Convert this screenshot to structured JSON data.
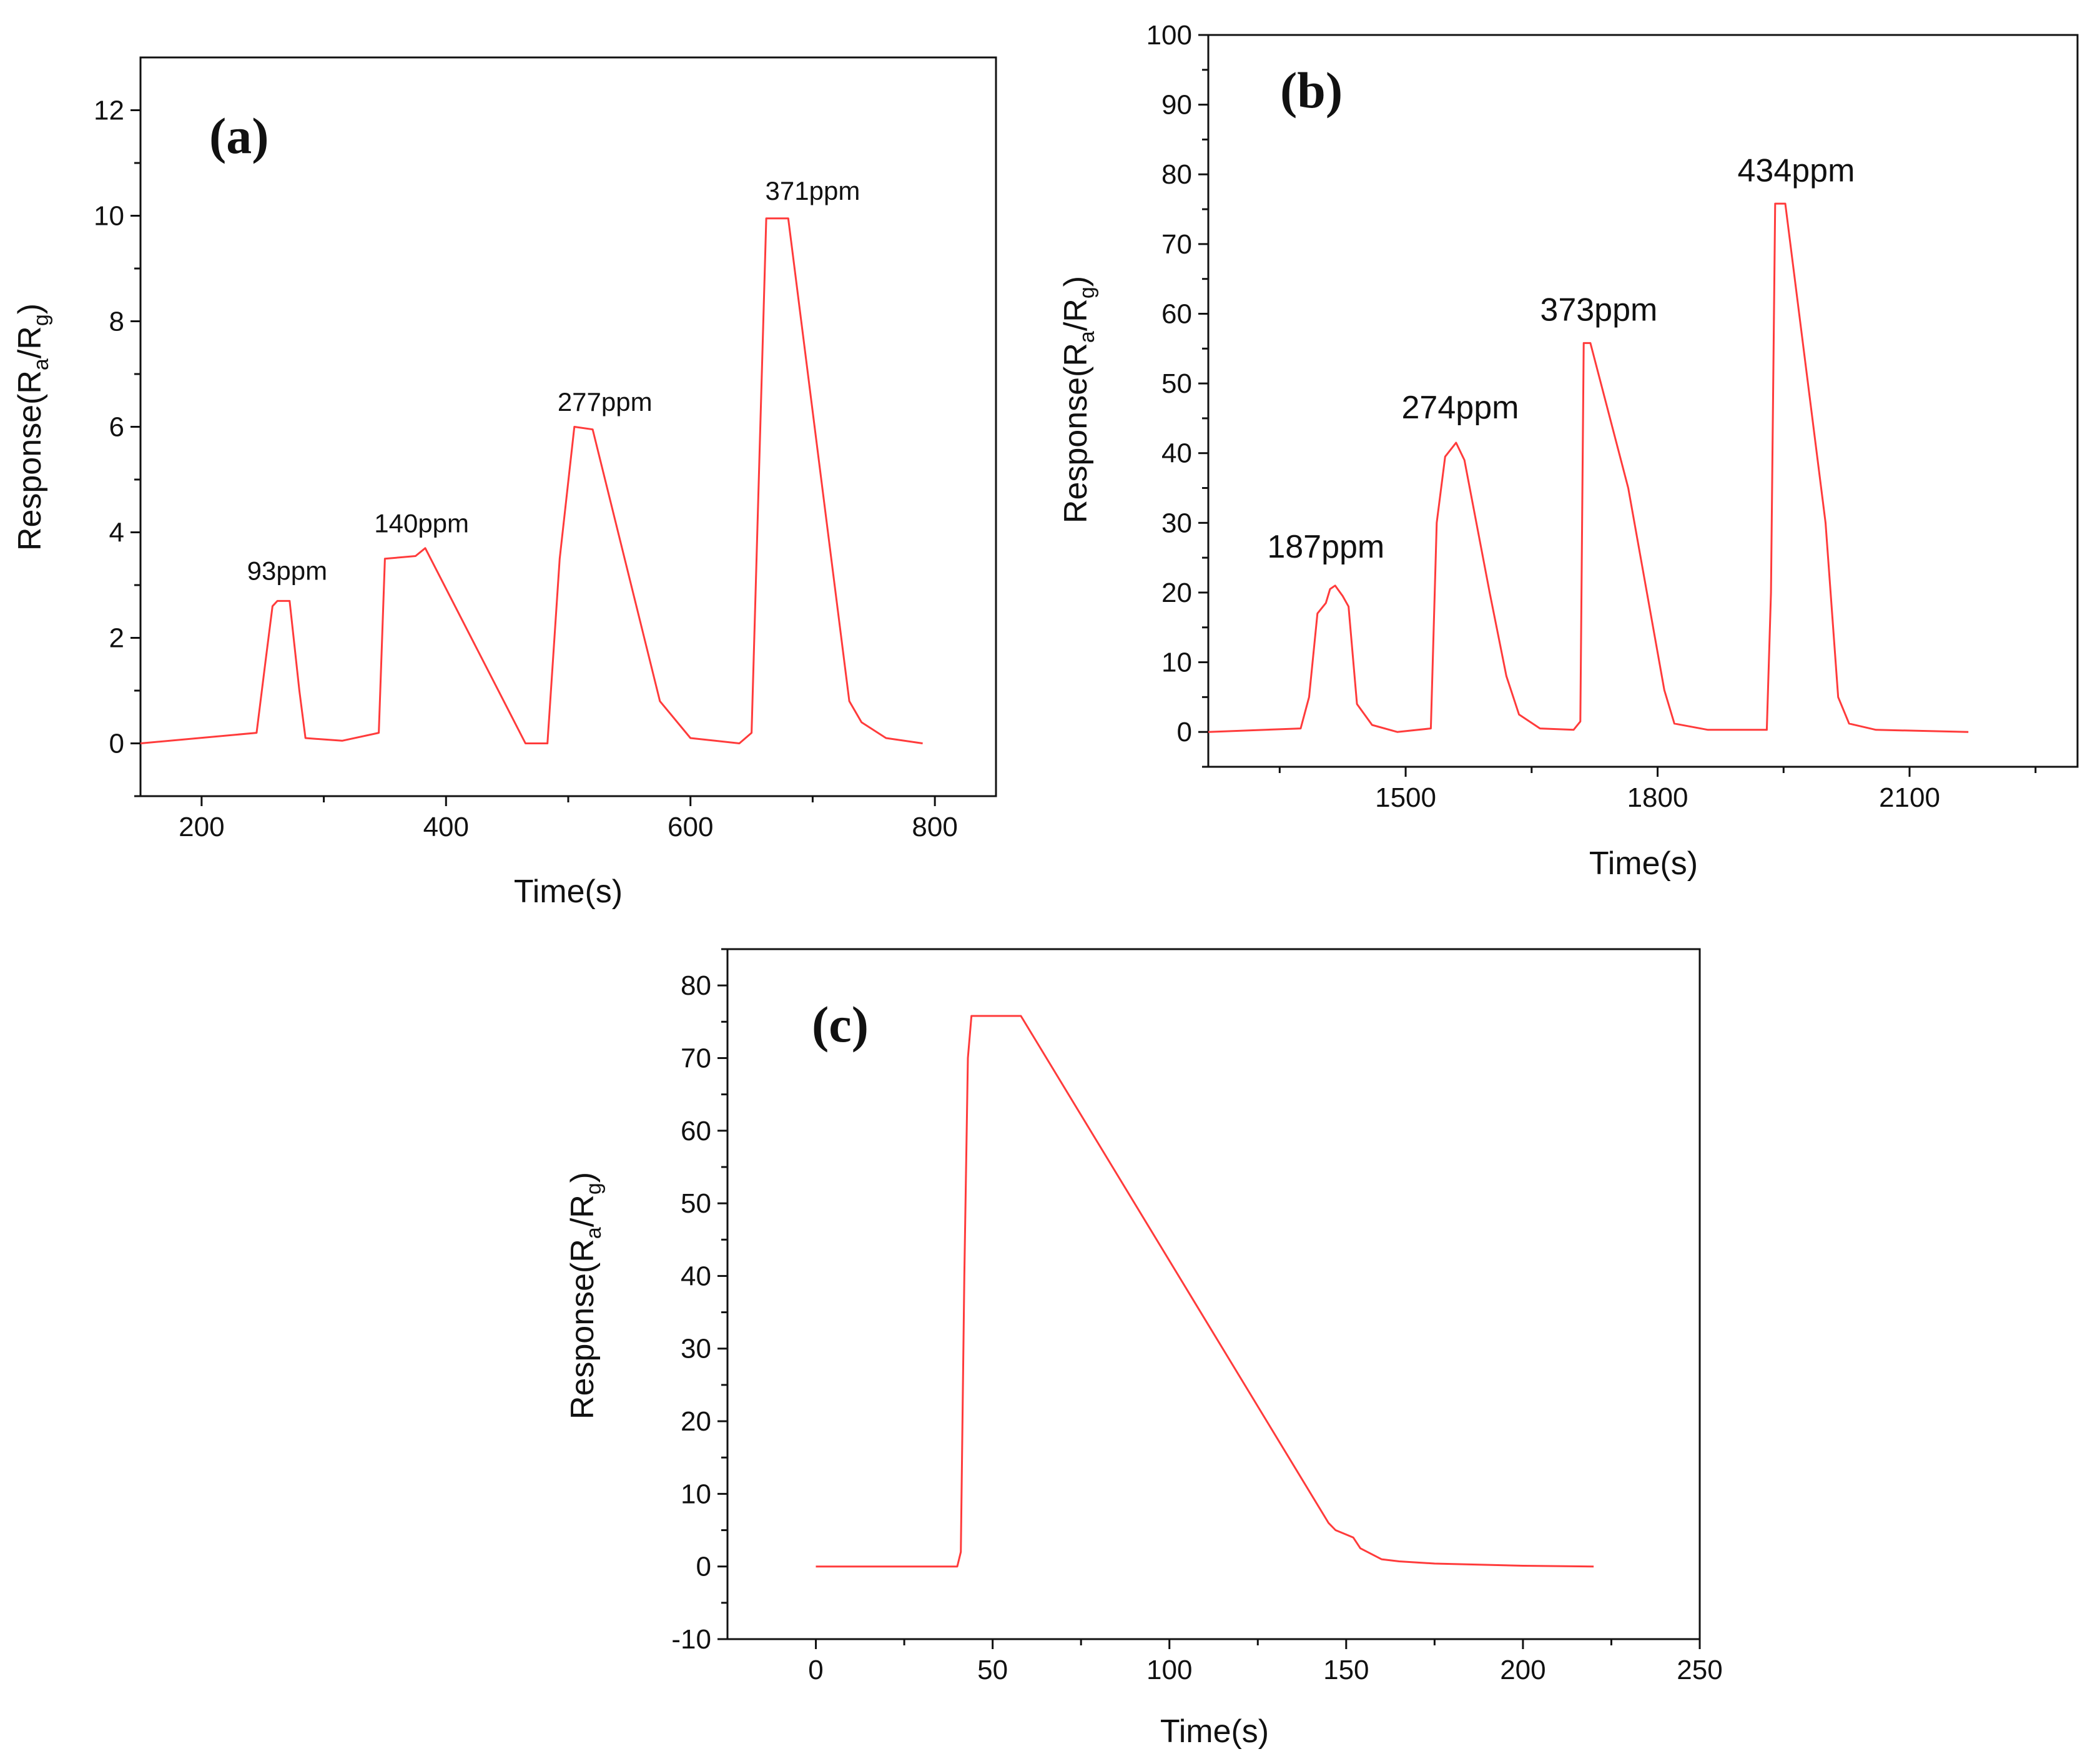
{
  "chart_data": [
    {
      "panel": "(a)",
      "type": "line",
      "xlabel": "Time(s)",
      "ylabel_main": "Response(R",
      "ylabel_sub1": "a",
      "ylabel_mid": "/R",
      "ylabel_sub2": "g",
      "ylabel_end": ")",
      "xlim": [
        150,
        850
      ],
      "ylim": [
        -1,
        13
      ],
      "xticks": [
        200,
        400,
        600,
        800
      ],
      "yticks": [
        0,
        2,
        4,
        6,
        8,
        10,
        12
      ],
      "xminor": [
        300,
        500,
        700
      ],
      "yminor": [
        -1,
        1,
        3,
        5,
        7,
        9,
        11
      ],
      "color": "#ff3b3b",
      "series": [
        {
          "name": "response",
          "x": [
            150,
            245,
            252,
            258,
            262,
            272,
            280,
            285,
            315,
            345,
            350,
            375,
            383,
            465,
            483,
            493,
            505,
            520,
            575,
            600,
            640,
            650,
            662,
            670,
            680,
            730,
            740,
            760,
            790
          ],
          "y": [
            0,
            0.2,
            1.5,
            2.6,
            2.7,
            2.7,
            1.0,
            0.1,
            0.05,
            0.2,
            3.5,
            3.55,
            3.7,
            0,
            0,
            3.5,
            6.0,
            5.95,
            0.8,
            0.1,
            0,
            0.2,
            9.95,
            9.95,
            9.95,
            0.8,
            0.4,
            0.1,
            0
          ]
        }
      ],
      "annotations": [
        {
          "text": "93ppm",
          "x": 270,
          "y": 3.1
        },
        {
          "text": "140ppm",
          "x": 380,
          "y": 4.0
        },
        {
          "text": "277ppm",
          "x": 530,
          "y": 6.3
        },
        {
          "text": "371ppm",
          "x": 700,
          "y": 10.3
        }
      ]
    },
    {
      "panel": "(b)",
      "type": "line",
      "xlabel": "Time(s)",
      "ylabel_main": "Response(R",
      "ylabel_sub1": "a",
      "ylabel_mid": "/R",
      "ylabel_sub2": "g",
      "ylabel_end": ")",
      "xlim": [
        1265,
        2300
      ],
      "ylim": [
        -5,
        100
      ],
      "xticks": [
        1500,
        1800,
        2100
      ],
      "yticks": [
        0,
        10,
        20,
        30,
        40,
        50,
        60,
        70,
        80,
        90,
        100
      ],
      "xminor": [
        1350,
        1650,
        1950,
        2250
      ],
      "yminor": [
        -5,
        5,
        15,
        25,
        35,
        45,
        55,
        65,
        75,
        85,
        95
      ],
      "color": "#ff3b3b",
      "series": [
        {
          "name": "response",
          "x": [
            1265,
            1375,
            1385,
            1395,
            1405,
            1410,
            1416,
            1425,
            1432,
            1442,
            1460,
            1490,
            1530,
            1537,
            1547,
            1560,
            1570,
            1600,
            1620,
            1635,
            1660,
            1700,
            1708,
            1712,
            1720,
            1765,
            1808,
            1820,
            1860,
            1930,
            1935,
            1940,
            1952,
            2000,
            2015,
            2028,
            2060,
            2170
          ],
          "y": [
            0,
            0.5,
            5,
            17,
            18.5,
            20.5,
            21,
            19.5,
            18,
            4,
            1,
            0,
            0.5,
            30,
            39.5,
            41.5,
            39,
            20,
            8,
            2.5,
            0.5,
            0.3,
            1.5,
            55.8,
            55.8,
            35,
            6,
            1.2,
            0.3,
            0.3,
            20,
            75.8,
            75.8,
            30,
            5,
            1.2,
            0.3,
            0
          ]
        }
      ],
      "annotations": [
        {
          "text": "187ppm",
          "x": 1405,
          "y": 25
        },
        {
          "text": "274ppm",
          "x": 1565,
          "y": 45
        },
        {
          "text": "373ppm",
          "x": 1730,
          "y": 59
        },
        {
          "text": "434ppm",
          "x": 1965,
          "y": 79
        }
      ]
    },
    {
      "panel": "(c)",
      "type": "line",
      "xlabel": "Time(s)",
      "ylabel_main": "Response(R",
      "ylabel_sub1": "a",
      "ylabel_mid": "/R",
      "ylabel_sub2": "g",
      "ylabel_end": ")",
      "xlim": [
        -25,
        250
      ],
      "ylim": [
        -10,
        85
      ],
      "xticks": [
        0,
        50,
        100,
        150,
        200,
        250
      ],
      "yticks": [
        -10,
        0,
        10,
        20,
        30,
        40,
        50,
        60,
        70,
        80
      ],
      "xminor": [
        25,
        75,
        125,
        175,
        225
      ],
      "yminor": [
        -5,
        5,
        15,
        25,
        35,
        45,
        55,
        65,
        75,
        85
      ],
      "color": "#ff3b3b",
      "series": [
        {
          "name": "response",
          "x": [
            0,
            40,
            41,
            42,
            43,
            44,
            50,
            58,
            145,
            147,
            152,
            154,
            160,
            165,
            175,
            200,
            220
          ],
          "y": [
            0,
            0,
            2,
            40,
            70,
            75.8,
            75.8,
            75.8,
            6,
            5,
            4,
            2.5,
            1,
            0.7,
            0.4,
            0.1,
            0
          ]
        }
      ],
      "annotations": []
    }
  ]
}
